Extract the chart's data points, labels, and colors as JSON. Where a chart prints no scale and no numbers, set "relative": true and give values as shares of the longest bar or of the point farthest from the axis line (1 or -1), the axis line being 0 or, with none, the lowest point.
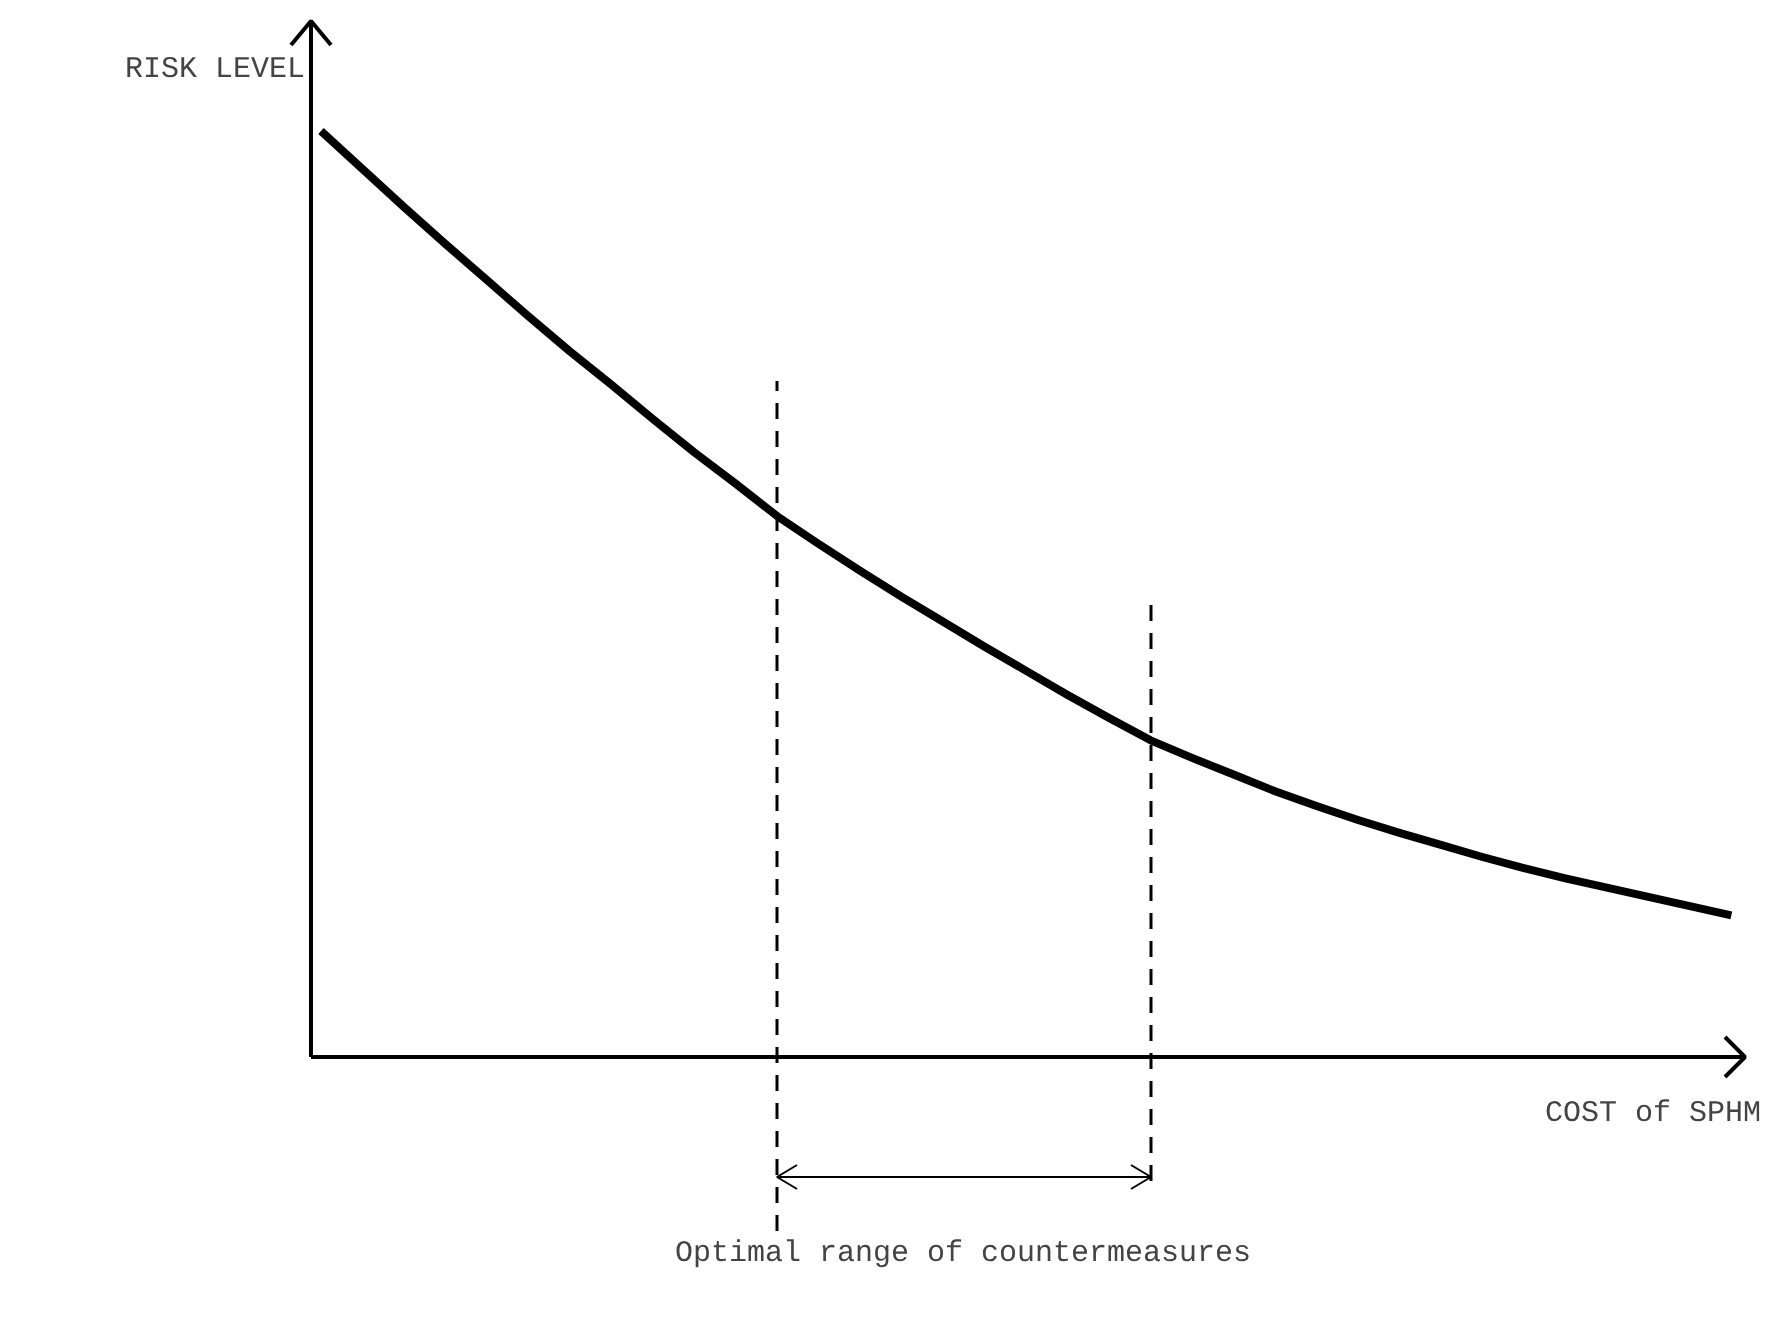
{
  "chart_data": {
    "type": "line",
    "relative": true,
    "xlabel": "COST of SPHM",
    "ylabel": "RISK LEVEL",
    "categories": [
      null,
      null,
      null,
      null,
      null,
      null,
      null,
      null,
      null,
      null,
      null,
      null,
      null,
      null,
      null,
      null,
      null,
      null,
      null,
      null,
      null,
      null,
      null,
      null,
      null,
      null,
      null,
      null,
      null,
      null,
      null,
      null,
      null,
      null,
      null
    ],
    "series": [
      {
        "color": "#000000",
        "values": [
          1,
          0.959,
          0.918,
          0.878,
          0.839,
          0.8,
          0.762,
          0.726,
          0.689,
          0.653,
          0.619,
          0.584,
          0.554,
          0.525,
          0.497,
          0.47,
          0.443,
          0.417,
          0.391,
          0.366,
          0.342,
          0.323,
          0.305,
          0.287,
          0.271,
          0.256,
          0.242,
          0.229,
          0.216,
          0.204,
          0.193,
          0.183,
          0.173,
          0.163,
          0.153
        ]
      }
    ],
    "annotations": [
      "Optimal range of countermeasures"
    ],
    "grid": false
  }
}
